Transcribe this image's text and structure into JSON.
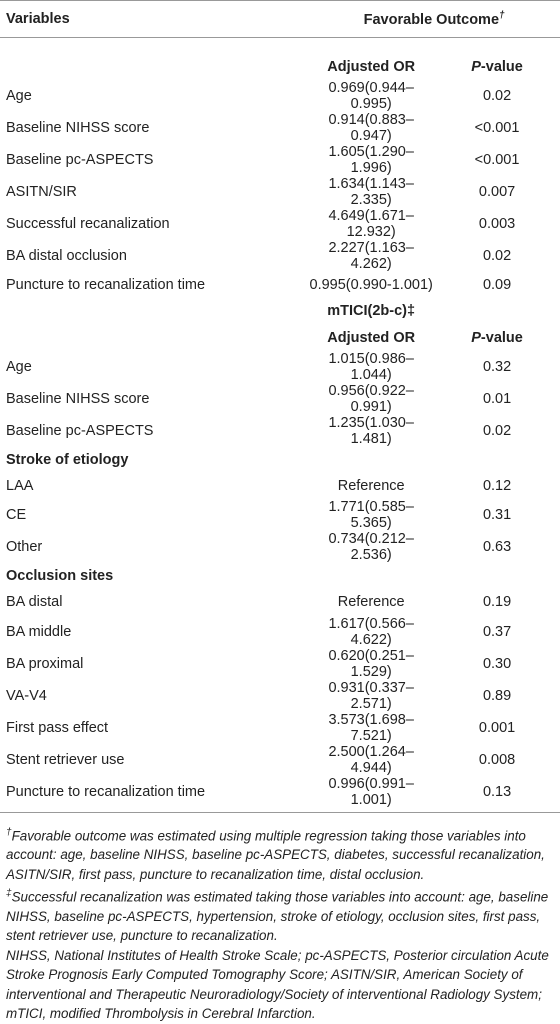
{
  "table": {
    "header": {
      "variables": "Variables",
      "outcome": "Favorable Outcome",
      "outcome_mark": "†"
    },
    "sections": [
      {
        "subheader": [
          "Adjusted OR",
          "P-value"
        ],
        "rows": [
          [
            "Age",
            "0.969(0.944–0.995)",
            "0.02"
          ],
          [
            "Baseline NIHSS score",
            "0.914(0.883–0.947)",
            "<0.001"
          ],
          [
            "Baseline pc-ASPECTS",
            "1.605(1.290–1.996)",
            "<0.001"
          ],
          [
            "ASITN/SIR",
            "1.634(1.143–2.335)",
            "0.007"
          ],
          [
            "Successful recanalization",
            "4.649(1.671–12.932)",
            "0.003"
          ],
          [
            "BA distal occlusion",
            "2.227(1.163–4.262)",
            "0.02"
          ],
          [
            "Puncture to recanalization time",
            "0.995(0.990-1.001)",
            "0.09"
          ]
        ]
      },
      {
        "title": "mTICI(2b-c)‡",
        "subheader": [
          "Adjusted OR",
          "P-value"
        ],
        "rows": [
          [
            "Age",
            "1.015(0.986–1.044)",
            "0.32"
          ],
          [
            "Baseline NIHSS score",
            "0.956(0.922–0.991)",
            "0.01"
          ],
          [
            "Baseline pc-ASPECTS",
            "1.235(1.030–1.481)",
            "0.02"
          ]
        ]
      },
      {
        "group": "Stroke of etiology",
        "rows": [
          [
            "LAA",
            "Reference",
            "0.12"
          ],
          [
            "CE",
            "1.771(0.585–5.365)",
            "0.31"
          ],
          [
            "Other",
            "0.734(0.212–2.536)",
            "0.63"
          ]
        ]
      },
      {
        "group": "Occlusion sites",
        "rows": [
          [
            "BA distal",
            "Reference",
            "0.19"
          ],
          [
            "BA middle",
            "1.617(0.566–4.622)",
            "0.37"
          ],
          [
            "BA proximal",
            "0.620(0.251–1.529)",
            "0.30"
          ],
          [
            "VA-V4",
            "0.931(0.337–2.571)",
            "0.89"
          ],
          [
            "First pass effect",
            "3.573(1.698–7.521)",
            "0.001"
          ],
          [
            "Stent retriever use",
            "2.500(1.264–4.944)",
            "0.008"
          ],
          [
            "Puncture to recanalization time",
            "0.996(0.991–1.001)",
            "0.13"
          ]
        ]
      }
    ]
  },
  "footnotes": [
    {
      "mark": "†",
      "text": "Favorable outcome was estimated using multiple regression taking those variables into account: age, baseline NIHSS, baseline pc-ASPECTS, diabetes, successful recanalization, ASITN/SIR, first pass, puncture to recanalization time, distal occlusion."
    },
    {
      "mark": "‡",
      "text": "Successful recanalization was estimated taking those variables into account: age, baseline NIHSS, baseline pc-ASPECTS, hypertension, stroke of etiology, occlusion sites, first pass, stent retriever use, puncture to recanalization."
    },
    {
      "text": "NIHSS, National Institutes of Health Stroke Scale; pc-ASPECTS, Posterior circulation Acute Stroke Prognosis Early Computed Tomography Score; ASITN/SIR, American Society of interventional and Therapeutic Neuroradiology/Society of interventional Radiology System; mTICI, modified Thrombolysis in Cerebral Infarction."
    }
  ]
}
